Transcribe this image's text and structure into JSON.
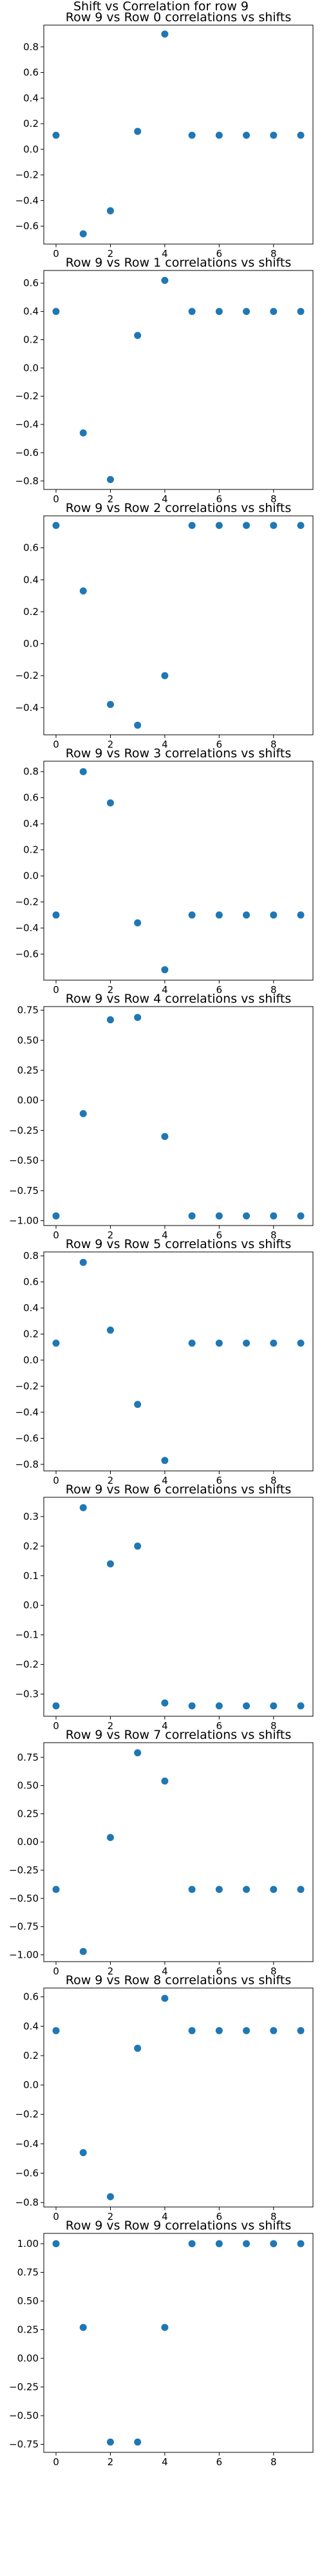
{
  "suptitle": "Shift vs Correlation for row 9",
  "chart_data": [
    {
      "type": "scatter",
      "title": "Row 9 vs Row 0 correlations vs shifts",
      "x": [
        0,
        1,
        2,
        3,
        4,
        5,
        6,
        7,
        8,
        9
      ],
      "y": [
        0.11,
        -0.66,
        -0.48,
        0.14,
        0.9,
        0.11,
        0.11,
        0.11,
        0.11,
        0.11
      ],
      "xlim": [
        -0.45,
        9.45
      ],
      "ylim": [
        -0.74,
        0.97
      ],
      "xticks": [
        0,
        2,
        4,
        6,
        8
      ],
      "yticks": [
        -0.6,
        -0.4,
        -0.2,
        0.0,
        0.2,
        0.4,
        0.6,
        0.8
      ],
      "ytick_labels": [
        "−0.6",
        "−0.4",
        "−0.2",
        "0.0",
        "0.2",
        "0.4",
        "0.6",
        "0.8"
      ]
    },
    {
      "type": "scatter",
      "title": "Row 9 vs Row 1 correlations vs shifts",
      "x": [
        0,
        1,
        2,
        3,
        4,
        5,
        6,
        7,
        8,
        9
      ],
      "y": [
        0.4,
        -0.46,
        -0.79,
        0.23,
        0.62,
        0.4,
        0.4,
        0.4,
        0.4,
        0.4
      ],
      "xlim": [
        -0.45,
        9.45
      ],
      "ylim": [
        -0.86,
        0.69
      ],
      "xticks": [
        0,
        2,
        4,
        6,
        8
      ],
      "yticks": [
        -0.8,
        -0.6,
        -0.4,
        -0.2,
        0.0,
        0.2,
        0.4,
        0.6
      ],
      "ytick_labels": [
        "−0.8",
        "−0.6",
        "−0.4",
        "−0.2",
        "0.0",
        "0.2",
        "0.4",
        "0.6"
      ]
    },
    {
      "type": "scatter",
      "title": "Row 9 vs Row 2 correlations vs shifts",
      "x": [
        0,
        1,
        2,
        3,
        4,
        5,
        6,
        7,
        8,
        9
      ],
      "y": [
        0.74,
        0.33,
        -0.38,
        -0.51,
        -0.2,
        0.74,
        0.74,
        0.74,
        0.74,
        0.74
      ],
      "xlim": [
        -0.45,
        9.45
      ],
      "ylim": [
        -0.57,
        0.8
      ],
      "xticks": [
        0,
        2,
        4,
        6,
        8
      ],
      "yticks": [
        -0.4,
        -0.2,
        0.0,
        0.2,
        0.4,
        0.6
      ],
      "ytick_labels": [
        "−0.4",
        "−0.2",
        "0.0",
        "0.2",
        "0.4",
        "0.6"
      ]
    },
    {
      "type": "scatter",
      "title": "Row 9 vs Row 3 correlations vs shifts",
      "x": [
        0,
        1,
        2,
        3,
        4,
        5,
        6,
        7,
        8,
        9
      ],
      "y": [
        -0.3,
        0.8,
        0.56,
        -0.36,
        -0.72,
        -0.3,
        -0.3,
        -0.3,
        -0.3,
        -0.3
      ],
      "xlim": [
        -0.45,
        9.45
      ],
      "ylim": [
        -0.8,
        0.88
      ],
      "xticks": [
        0,
        2,
        4,
        6,
        8
      ],
      "yticks": [
        -0.6,
        -0.4,
        -0.2,
        0.0,
        0.2,
        0.4,
        0.6,
        0.8
      ],
      "ytick_labels": [
        "−0.6",
        "−0.4",
        "−0.2",
        "0.0",
        "0.2",
        "0.4",
        "0.6",
        "0.8"
      ]
    },
    {
      "type": "scatter",
      "title": "Row 9 vs Row 4 correlations vs shifts",
      "x": [
        0,
        1,
        2,
        3,
        4,
        5,
        6,
        7,
        8,
        9
      ],
      "y": [
        -0.96,
        -0.11,
        0.67,
        0.69,
        -0.3,
        -0.96,
        -0.96,
        -0.96,
        -0.96,
        -0.96
      ],
      "xlim": [
        -0.45,
        9.45
      ],
      "ylim": [
        -1.04,
        0.78
      ],
      "xticks": [
        0,
        2,
        4,
        6,
        8
      ],
      "yticks": [
        -1.0,
        -0.75,
        -0.5,
        -0.25,
        0.0,
        0.25,
        0.5,
        0.75
      ],
      "ytick_labels": [
        "−1.00",
        "−0.75",
        "−0.50",
        "−0.25",
        "0.00",
        "0.25",
        "0.50",
        "0.75"
      ]
    },
    {
      "type": "scatter",
      "title": "Row 9 vs Row 5 correlations vs shifts",
      "x": [
        0,
        1,
        2,
        3,
        4,
        5,
        6,
        7,
        8,
        9
      ],
      "y": [
        0.13,
        0.75,
        0.23,
        -0.34,
        -0.77,
        0.13,
        0.13,
        0.13,
        0.13,
        0.13
      ],
      "xlim": [
        -0.45,
        9.45
      ],
      "ylim": [
        -0.85,
        0.83
      ],
      "xticks": [
        0,
        2,
        4,
        6,
        8
      ],
      "yticks": [
        -0.8,
        -0.6,
        -0.4,
        -0.2,
        0.0,
        0.2,
        0.4,
        0.6,
        0.8
      ],
      "ytick_labels": [
        "−0.8",
        "−0.6",
        "−0.4",
        "−0.2",
        "0.0",
        "0.2",
        "0.4",
        "0.6",
        "0.8"
      ]
    },
    {
      "type": "scatter",
      "title": "Row 9 vs Row 6 correlations vs shifts",
      "x": [
        0,
        1,
        2,
        3,
        4,
        5,
        6,
        7,
        8,
        9
      ],
      "y": [
        -0.34,
        0.33,
        0.14,
        0.2,
        -0.33,
        -0.34,
        -0.34,
        -0.34,
        -0.34,
        -0.34
      ],
      "xlim": [
        -0.45,
        9.45
      ],
      "ylim": [
        -0.375,
        0.365
      ],
      "xticks": [
        0,
        2,
        4,
        6,
        8
      ],
      "yticks": [
        -0.3,
        -0.2,
        -0.1,
        0.0,
        0.1,
        0.2,
        0.3
      ],
      "ytick_labels": [
        "−0.3",
        "−0.2",
        "−0.1",
        "0.0",
        "0.1",
        "0.2",
        "0.3"
      ]
    },
    {
      "type": "scatter",
      "title": "Row 9 vs Row 7 correlations vs shifts",
      "x": [
        0,
        1,
        2,
        3,
        4,
        5,
        6,
        7,
        8,
        9
      ],
      "y": [
        -0.42,
        -0.97,
        0.04,
        0.79,
        0.54,
        -0.42,
        -0.42,
        -0.42,
        -0.42,
        -0.42
      ],
      "xlim": [
        -0.45,
        9.45
      ],
      "ylim": [
        -1.06,
        0.88
      ],
      "xticks": [
        0,
        2,
        4,
        6,
        8
      ],
      "yticks": [
        -1.0,
        -0.75,
        -0.5,
        -0.25,
        0.0,
        0.25,
        0.5,
        0.75
      ],
      "ytick_labels": [
        "−1.00",
        "−0.75",
        "−0.50",
        "−0.25",
        "0.00",
        "0.25",
        "0.50",
        "0.75"
      ]
    },
    {
      "type": "scatter",
      "title": "Row 9 vs Row 8 correlations vs shifts",
      "x": [
        0,
        1,
        2,
        3,
        4,
        5,
        6,
        7,
        8,
        9
      ],
      "y": [
        0.37,
        -0.46,
        -0.76,
        0.25,
        0.59,
        0.37,
        0.37,
        0.37,
        0.37,
        0.37
      ],
      "xlim": [
        -0.45,
        9.45
      ],
      "ylim": [
        -0.83,
        0.66
      ],
      "xticks": [
        0,
        2,
        4,
        6,
        8
      ],
      "yticks": [
        -0.8,
        -0.6,
        -0.4,
        -0.2,
        0.0,
        0.2,
        0.4,
        0.6
      ],
      "ytick_labels": [
        "−0.8",
        "−0.6",
        "−0.4",
        "−0.2",
        "0.0",
        "0.2",
        "0.4",
        "0.6"
      ]
    },
    {
      "type": "scatter",
      "title": "Row 9 vs Row 9 correlations vs shifts",
      "x": [
        0,
        1,
        2,
        3,
        4,
        5,
        6,
        7,
        8,
        9
      ],
      "y": [
        1.0,
        0.27,
        -0.73,
        -0.73,
        0.27,
        1.0,
        1.0,
        1.0,
        1.0,
        1.0
      ],
      "xlim": [
        -0.45,
        9.45
      ],
      "ylim": [
        -0.82,
        1.09
      ],
      "xticks": [
        0,
        2,
        4,
        6,
        8
      ],
      "yticks": [
        -0.75,
        -0.5,
        -0.25,
        0.0,
        0.25,
        0.5,
        0.75,
        1.0
      ],
      "ytick_labels": [
        "−0.75",
        "−0.50",
        "−0.25",
        "0.00",
        "0.25",
        "0.50",
        "0.75",
        "1.00"
      ]
    }
  ],
  "colors": {
    "points": "#1f77b4",
    "axes": "#000000",
    "background": "#ffffff"
  }
}
